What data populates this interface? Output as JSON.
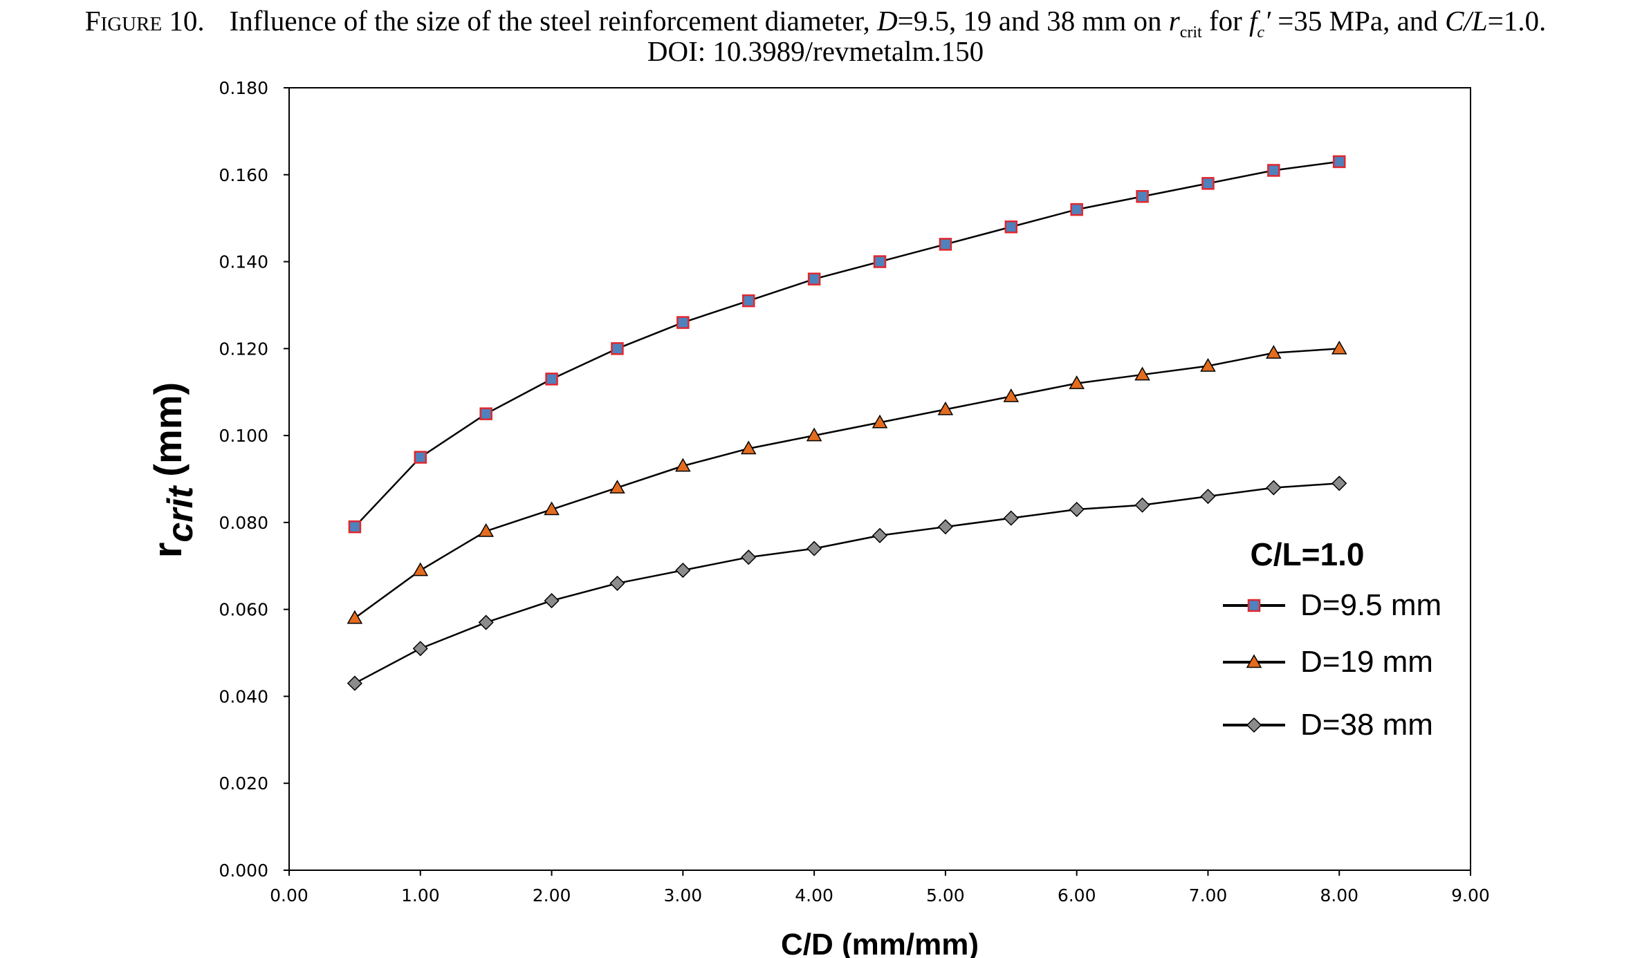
{
  "caption": {
    "figure_label": "Figure 10.",
    "text_1": "Influence of the size of the steel reinforcement diameter,",
    "d_symbol": "D",
    "d_values": "=9.5, 19 and 38 mm on",
    "r_symbol": "r",
    "r_subscript": "crit",
    "for_text": "for",
    "f_symbol": "f",
    "f_subscript": "c",
    "f_prime": "′",
    "f_value": "=35 MPa, and",
    "cl_symbol": "C/L",
    "cl_value": "=1.0.",
    "doi": "DOI: 10.3989/revmetalm.150"
  },
  "chart_data": {
    "type": "line",
    "xlabel": "C/D (mm/mm)",
    "ylabel_main": "r",
    "ylabel_sub": "crit",
    "ylabel_unit": "(mm)",
    "xlim": [
      0,
      9
    ],
    "ylim": [
      0,
      0.18
    ],
    "x_ticks": [
      "0.00",
      "1.00",
      "2.00",
      "3.00",
      "4.00",
      "5.00",
      "6.00",
      "7.00",
      "8.00",
      "9.00"
    ],
    "y_ticks": [
      "0.000",
      "0.020",
      "0.040",
      "0.060",
      "0.080",
      "0.100",
      "0.120",
      "0.140",
      "0.160",
      "0.180"
    ],
    "grid": false,
    "legend_title": "C/L=1.0",
    "legend_position": "right",
    "x": [
      0.5,
      1.0,
      1.5,
      2.0,
      2.5,
      3.0,
      3.5,
      4.0,
      4.5,
      5.0,
      5.5,
      6.0,
      6.5,
      7.0,
      7.5,
      8.0
    ],
    "series": [
      {
        "name": "D=9.5 mm",
        "marker": "square",
        "fill": "#4f81bd",
        "edge": "#e0282d",
        "values": [
          0.079,
          0.095,
          0.105,
          0.113,
          0.12,
          0.126,
          0.131,
          0.136,
          0.14,
          0.144,
          0.148,
          0.152,
          0.155,
          0.158,
          0.161,
          0.163
        ]
      },
      {
        "name": "D=19 mm",
        "marker": "triangle",
        "fill": "#e36c1e",
        "edge": "#000000",
        "values": [
          0.058,
          0.069,
          0.078,
          0.083,
          0.088,
          0.093,
          0.097,
          0.1,
          0.103,
          0.106,
          0.109,
          0.112,
          0.114,
          0.116,
          0.119,
          0.12
        ]
      },
      {
        "name": "D=38 mm",
        "marker": "diamond",
        "fill": "#8c8c8c",
        "edge": "#000000",
        "values": [
          0.043,
          0.051,
          0.057,
          0.062,
          0.066,
          0.069,
          0.072,
          0.074,
          0.077,
          0.079,
          0.081,
          0.083,
          0.084,
          0.086,
          0.088,
          0.089
        ]
      }
    ]
  }
}
